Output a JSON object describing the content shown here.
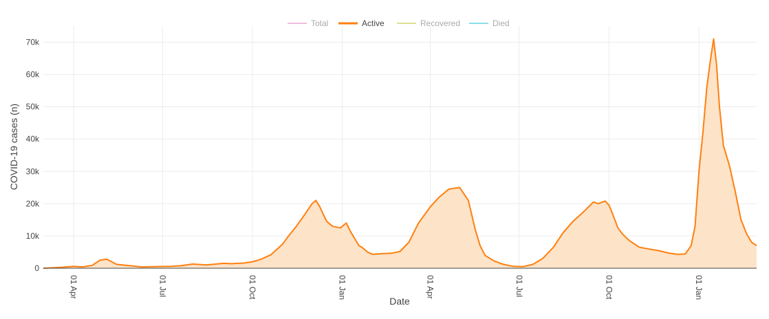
{
  "chart_data": {
    "type": "area",
    "xlabel": "Date",
    "ylabel": "COVID-19 cases (n)",
    "x_range": [
      "2020-03-01",
      "2022-03-01"
    ],
    "ylim": [
      0,
      75000
    ],
    "y_ticks": [
      0,
      10000,
      20000,
      30000,
      40000,
      50000,
      60000,
      70000
    ],
    "y_tick_labels": [
      "0",
      "10k",
      "20k",
      "30k",
      "40k",
      "50k",
      "60k",
      "70k"
    ],
    "x_ticks": [
      "2020-04-01",
      "2020-07-01",
      "2020-10-01",
      "2021-01-01",
      "2021-04-01",
      "2021-07-01",
      "2021-10-01",
      "2022-01-01"
    ],
    "x_tick_labels": [
      "01 Apr",
      "01 Jul",
      "01 Oct",
      "01 Jan",
      "01 Apr",
      "01 Jul",
      "01 Oct",
      "01 Jan"
    ],
    "grid": true,
    "legend_position": "top-center",
    "legend": [
      {
        "name": "Total",
        "color": "#e377c2",
        "visible": false
      },
      {
        "name": "Active",
        "color": "#ff7f0e",
        "visible": true
      },
      {
        "name": "Recovered",
        "color": "#bcbd22",
        "visible": false
      },
      {
        "name": "Died",
        "color": "#17becf",
        "visible": false
      }
    ],
    "series": [
      {
        "name": "Active",
        "color": "#ff7f0e",
        "fill": "#fde3c8",
        "x": [
          "2020-03-01",
          "2020-03-20",
          "2020-04-01",
          "2020-04-10",
          "2020-04-20",
          "2020-04-28",
          "2020-05-05",
          "2020-05-15",
          "2020-05-25",
          "2020-06-10",
          "2020-06-25",
          "2020-07-10",
          "2020-07-20",
          "2020-08-01",
          "2020-08-15",
          "2020-09-01",
          "2020-09-10",
          "2020-09-15",
          "2020-09-22",
          "2020-10-01",
          "2020-10-10",
          "2020-10-20",
          "2020-11-01",
          "2020-11-07",
          "2020-11-15",
          "2020-11-22",
          "2020-12-01",
          "2020-12-05",
          "2020-12-09",
          "2020-12-12",
          "2020-12-16",
          "2020-12-22",
          "2020-12-30",
          "2021-01-05",
          "2021-01-10",
          "2021-01-14",
          "2021-01-18",
          "2021-01-21",
          "2021-01-27",
          "2021-02-01",
          "2021-02-10",
          "2021-02-20",
          "2021-03-01",
          "2021-03-10",
          "2021-03-20",
          "2021-04-01",
          "2021-04-10",
          "2021-04-20",
          "2021-05-01",
          "2021-05-10",
          "2021-05-17",
          "2021-05-22",
          "2021-05-27",
          "2021-06-05",
          "2021-06-15",
          "2021-06-25",
          "2021-07-05",
          "2021-07-15",
          "2021-07-25",
          "2021-08-05",
          "2021-08-15",
          "2021-08-25",
          "2021-09-05",
          "2021-09-15",
          "2021-09-20",
          "2021-09-27",
          "2021-10-01",
          "2021-10-05",
          "2021-10-10",
          "2021-10-15",
          "2021-10-22",
          "2021-11-01",
          "2021-11-10",
          "2021-11-20",
          "2021-12-01",
          "2021-12-10",
          "2021-12-18",
          "2021-12-24",
          "2021-12-28",
          "2022-01-01",
          "2022-01-05",
          "2022-01-09",
          "2022-01-13",
          "2022-01-16",
          "2022-01-19",
          "2022-01-22",
          "2022-01-26",
          "2022-02-01",
          "2022-02-07",
          "2022-02-13",
          "2022-02-19",
          "2022-02-24",
          "2022-03-01"
        ],
        "values": [
          0,
          300,
          600,
          400,
          900,
          2500,
          2800,
          1200,
          900,
          400,
          500,
          600,
          800,
          1300,
          1000,
          1500,
          1400,
          1500,
          1600,
          2000,
          2800,
          4200,
          7500,
          10000,
          13000,
          16000,
          20000,
          21000,
          19000,
          17000,
          14500,
          13000,
          12500,
          14000,
          11000,
          9000,
          7000,
          6500,
          5000,
          4300,
          4500,
          4600,
          5200,
          8000,
          14000,
          19000,
          22000,
          24500,
          25000,
          21000,
          12000,
          7000,
          4000,
          2300,
          1200,
          600,
          500,
          1200,
          3000,
          6500,
          11000,
          14500,
          17500,
          20500,
          20000,
          20800,
          19500,
          16500,
          12500,
          10500,
          8500,
          6500,
          6000,
          5500,
          4700,
          4300,
          4400,
          7000,
          13000,
          30000,
          42000,
          56000,
          65000,
          71000,
          63000,
          50000,
          38000,
          32000,
          24000,
          15000,
          10500,
          8000,
          7000
        ]
      }
    ]
  }
}
